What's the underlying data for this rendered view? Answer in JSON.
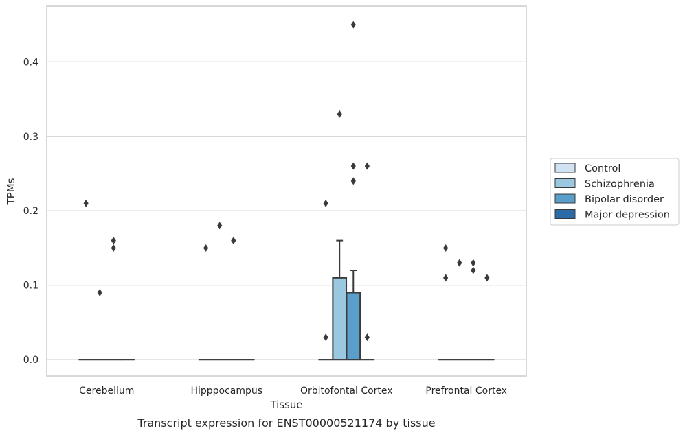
{
  "chart_data": {
    "type": "box",
    "xlabel": "Tissue",
    "ylabel": "TPMs",
    "caption": "Transcript expression for ENST00000521174 by tissue",
    "ylim": [
      -0.022,
      0.475
    ],
    "yticks": [
      0.0,
      0.1,
      0.2,
      0.3,
      0.4
    ],
    "ytick_labels": [
      "0.0",
      "0.1",
      "0.2",
      "0.3",
      "0.4"
    ],
    "grid": "horizontal",
    "legend_position": "right",
    "categories": [
      "Cerebellum",
      "Hipppocampus",
      "Orbitofontal Cortex",
      "Prefrontal Cortex"
    ],
    "series": [
      {
        "name": "Control",
        "color": "#d1e3f3",
        "boxes": [
          {
            "q1": 0,
            "median": 0,
            "q3": 0,
            "whislo": 0,
            "whishi": 0,
            "fliers": [
              0.21
            ]
          },
          {
            "q1": 0,
            "median": 0,
            "q3": 0,
            "whislo": 0,
            "whishi": 0,
            "fliers": [
              0.15
            ]
          },
          {
            "q1": 0,
            "median": 0,
            "q3": 0,
            "whislo": 0,
            "whishi": 0,
            "fliers": [
              0.21,
              0.03
            ]
          },
          {
            "q1": 0,
            "median": 0,
            "q3": 0,
            "whislo": 0,
            "whishi": 0,
            "fliers": [
              0.15,
              0.11
            ]
          }
        ]
      },
      {
        "name": "Schizophrenia",
        "color": "#9ac8e0",
        "boxes": [
          {
            "q1": 0,
            "median": 0,
            "q3": 0,
            "whislo": 0,
            "whishi": 0,
            "fliers": [
              0.09
            ]
          },
          {
            "q1": 0,
            "median": 0,
            "q3": 0,
            "whislo": 0,
            "whishi": 0,
            "fliers": [
              0.18
            ]
          },
          {
            "q1": 0,
            "median": 0,
            "q3": 0.11,
            "whislo": 0,
            "whishi": 0.16,
            "fliers": [
              0.33
            ]
          },
          {
            "q1": 0,
            "median": 0,
            "q3": 0,
            "whislo": 0,
            "whishi": 0,
            "fliers": [
              0.13,
              0.13
            ]
          }
        ]
      },
      {
        "name": "Bipolar disorder",
        "color": "#5a9fcc",
        "boxes": [
          {
            "q1": 0,
            "median": 0,
            "q3": 0,
            "whislo": 0,
            "whishi": 0,
            "fliers": [
              0.16,
              0.15
            ]
          },
          {
            "q1": 0,
            "median": 0,
            "q3": 0,
            "whislo": 0,
            "whishi": 0,
            "fliers": [
              0.16
            ]
          },
          {
            "q1": 0,
            "median": 0,
            "q3": 0.09,
            "whislo": 0,
            "whishi": 0.12,
            "fliers": [
              0.45,
              0.26,
              0.24
            ]
          },
          {
            "q1": 0,
            "median": 0,
            "q3": 0,
            "whislo": 0,
            "whishi": 0,
            "fliers": [
              0.13,
              0.12
            ]
          }
        ]
      },
      {
        "name": "Major depression",
        "color": "#2b6ca8",
        "boxes": [
          {
            "q1": 0,
            "median": 0,
            "q3": 0,
            "whislo": 0,
            "whishi": 0,
            "fliers": []
          },
          {
            "q1": 0,
            "median": 0,
            "q3": 0,
            "whislo": 0,
            "whishi": 0,
            "fliers": []
          },
          {
            "q1": 0,
            "median": 0,
            "q3": 0,
            "whislo": 0,
            "whishi": 0,
            "fliers": [
              0.26,
              0.03
            ]
          },
          {
            "q1": 0,
            "median": 0,
            "q3": 0,
            "whislo": 0,
            "whishi": 0,
            "fliers": [
              0.11
            ]
          }
        ]
      }
    ]
  }
}
